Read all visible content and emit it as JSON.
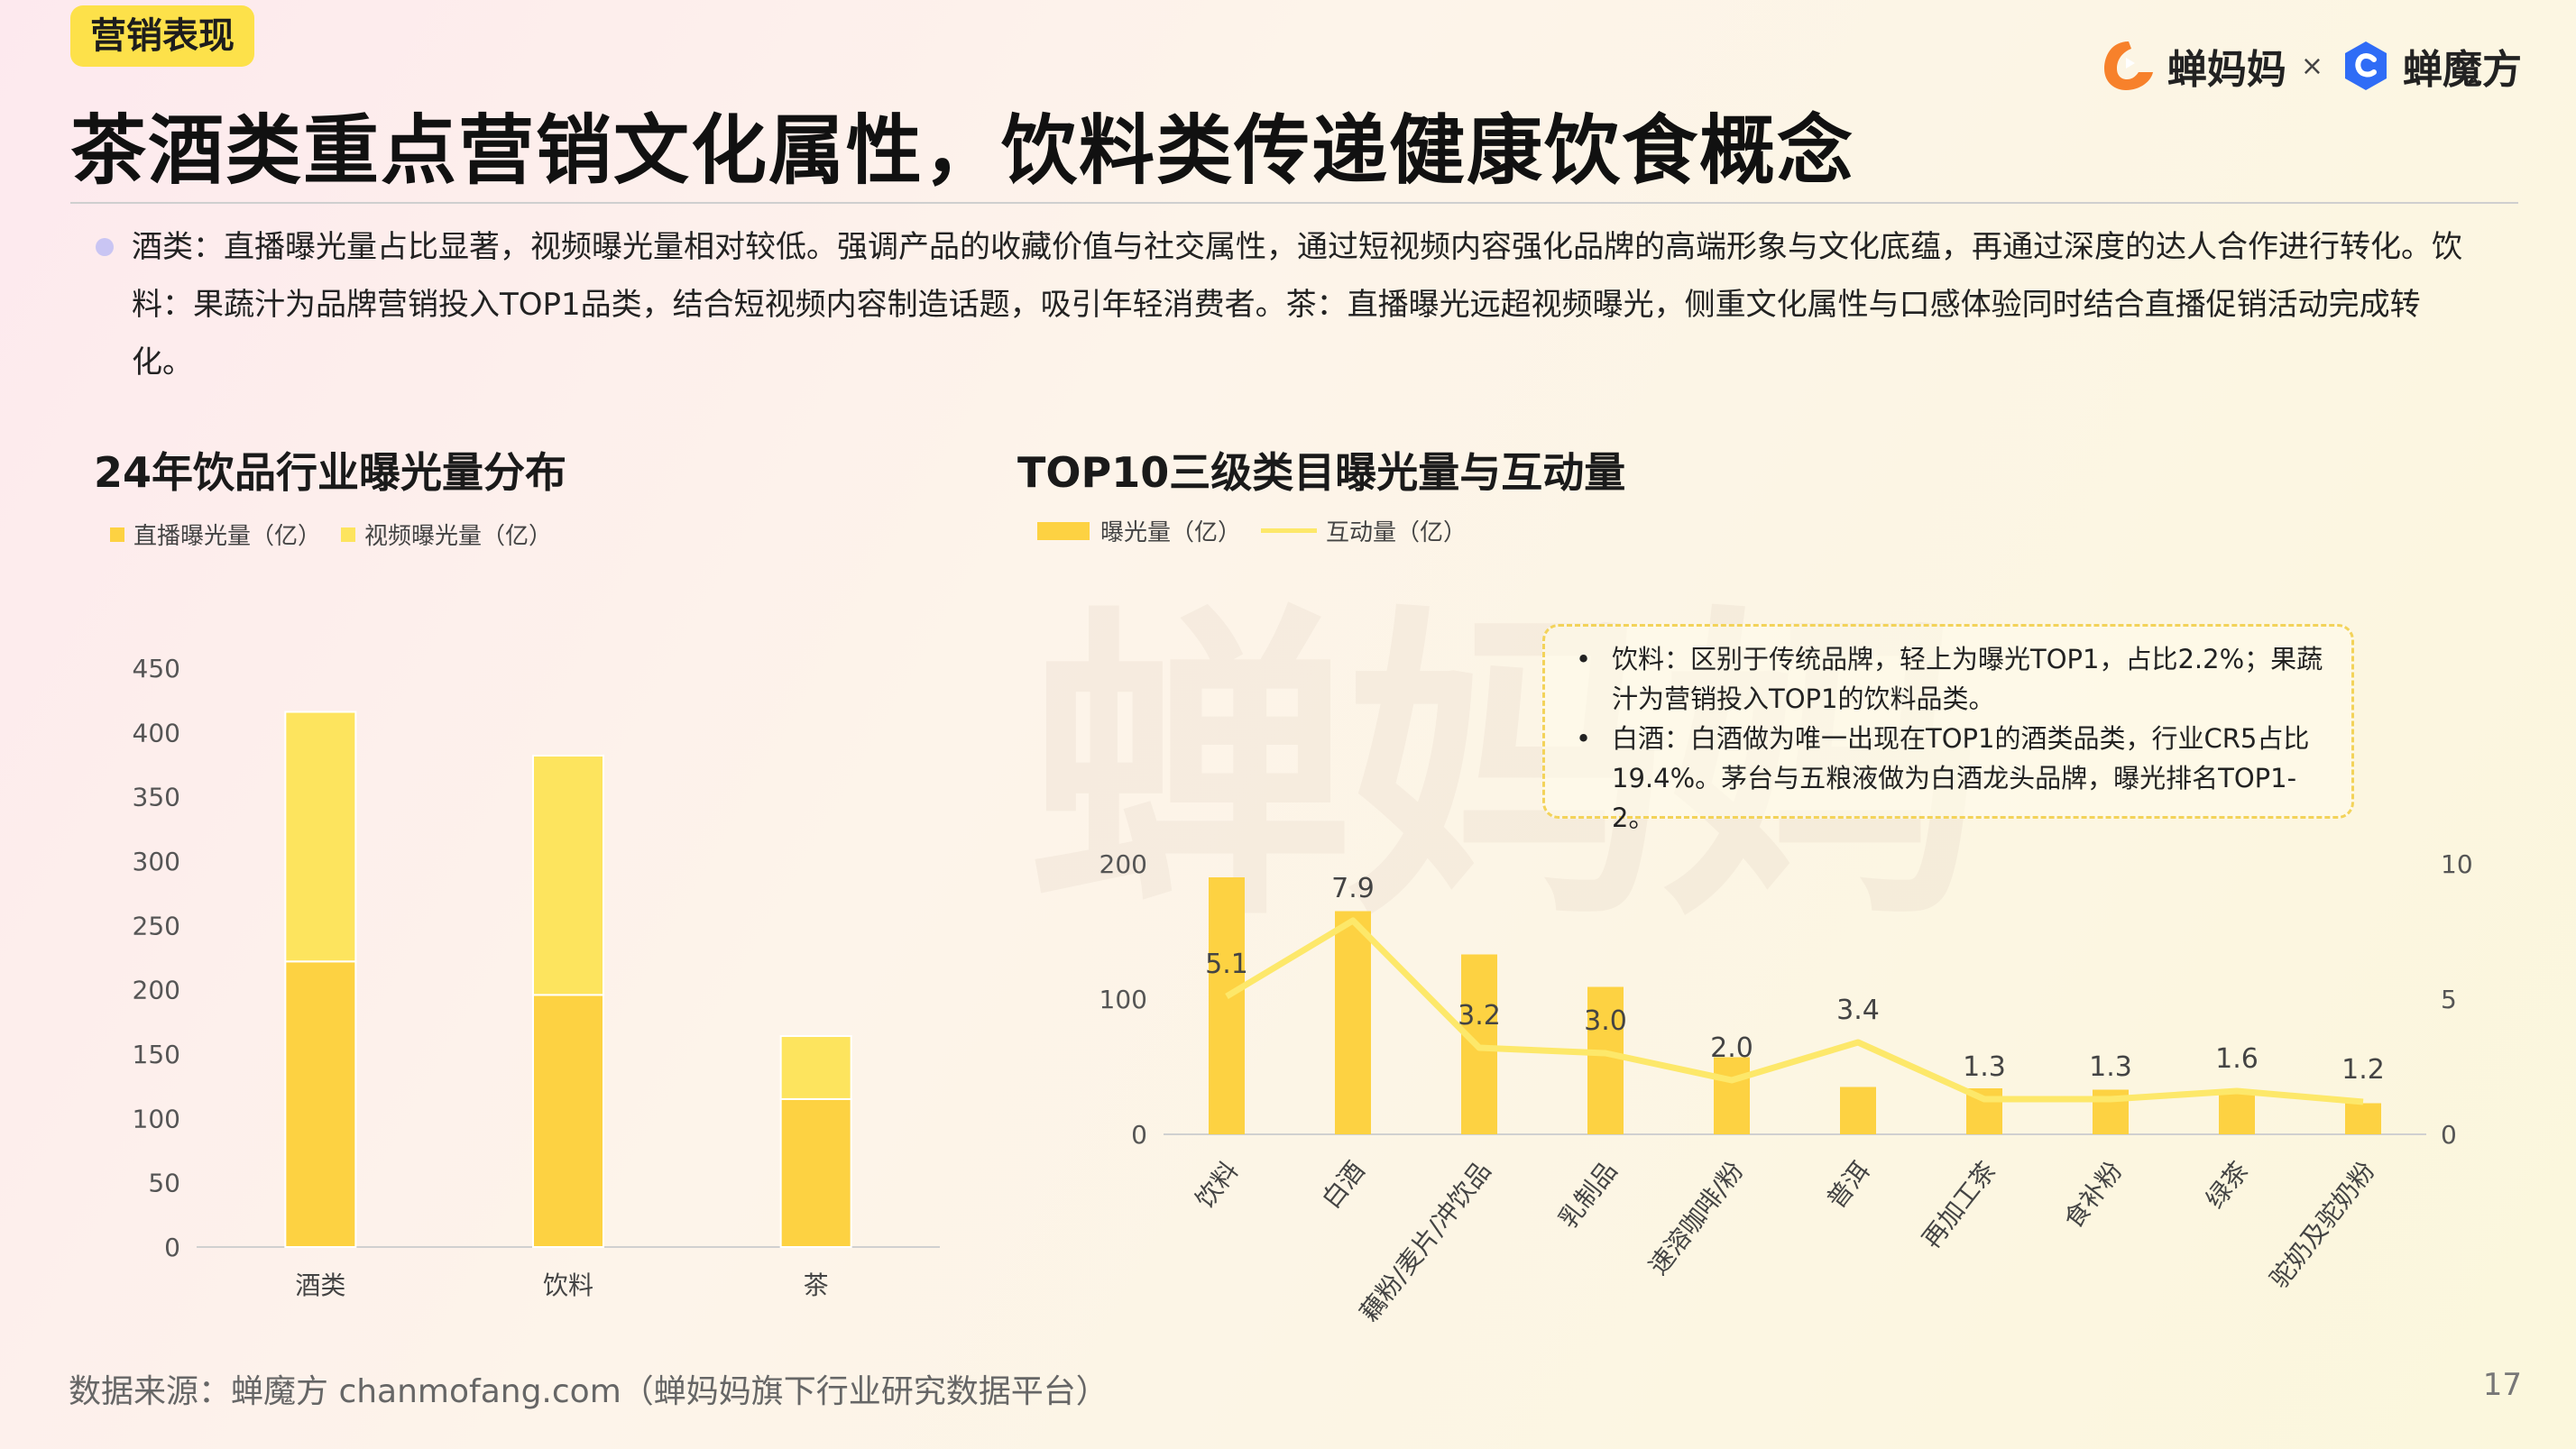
{
  "header": {
    "tag": "营销表现",
    "title": "茶酒类重点营销文化属性，饮料类传递健康饮食概念",
    "logo_left": "蝉妈妈",
    "logo_x": "×",
    "logo_right": "蝉魔方"
  },
  "summary": "酒类：直播曝光量占比显著，视频曝光量相对较低。强调产品的收藏价值与社交属性，通过短视频内容强化品牌的高端形象与文化底蕴，再通过深度的达人合作进行转化。饮料：果蔬汁为品牌营销投入TOP1品类，结合短视频内容制造话题，吸引年轻消费者。茶：直播曝光远超视频曝光，侧重文化属性与口感体验同时结合直播促销活动完成转化。",
  "watermark": "蝉妈妈",
  "note": {
    "items": [
      "饮料：区别于传统品牌，轻上为曝光TOP1，占比2.2%；果蔬汁为营销投入TOP1的饮料品类。",
      "白酒：白酒做为唯一出现在TOP1的酒类品类，行业CR5占比19.4%。茅台与五粮液做为白酒龙头品牌，曝光排名TOP1-2。"
    ]
  },
  "footer": {
    "source": "数据来源：蝉魔方 chanmofang.com（蝉妈妈旗下行业研究数据平台）",
    "page": "17"
  },
  "colors": {
    "bar_dark": "#fdd242",
    "bar_light": "#fde45e",
    "line": "#fde86a",
    "tag_bg": "#fde14a"
  },
  "chart_data": [
    {
      "type": "bar",
      "stacked": true,
      "title": "24年饮品行业曝光量分布",
      "categories": [
        "酒类",
        "饮料",
        "茶"
      ],
      "series": [
        {
          "name": "直播曝光量（亿）",
          "values": [
            222,
            196,
            115
          ]
        },
        {
          "name": "视频曝光量（亿）",
          "values": [
            194,
            186,
            49
          ]
        }
      ],
      "ylim": [
        0,
        450
      ],
      "yticks": [
        0,
        50,
        100,
        150,
        200,
        250,
        300,
        350,
        400,
        450
      ],
      "legend": "top-left",
      "grid": false
    },
    {
      "type": "bar",
      "title": "TOP10三级类目曝光量与互动量",
      "categories": [
        "饮料",
        "白酒",
        "藕粉/麦片/冲饮品",
        "乳制品",
        "速溶咖啡/粉",
        "普洱",
        "再加工茶",
        "食补粉",
        "绿茶",
        "驼奶及驼奶粉"
      ],
      "series": [
        {
          "name": "曝光量（亿）",
          "type": "bar",
          "axis": "left",
          "values": [
            190,
            165,
            133,
            109,
            57,
            35,
            34,
            33,
            33,
            23
          ]
        },
        {
          "name": "互动量（亿）",
          "type": "line",
          "axis": "right",
          "values": [
            5.1,
            7.9,
            3.2,
            3.0,
            2.0,
            3.4,
            1.3,
            1.3,
            1.6,
            1.2
          ],
          "labels": [
            "5.1",
            "7.9",
            "3.2",
            "3.0",
            "2.0",
            "3.4",
            "1.3",
            "1.3",
            "1.6",
            "1.2"
          ]
        }
      ],
      "ylim_left": [
        0,
        200
      ],
      "yticks_left": [
        0,
        100,
        200
      ],
      "ylim_right": [
        0,
        10
      ],
      "yticks_right": [
        0,
        5,
        10
      ],
      "legend": "top-left",
      "grid": false
    }
  ]
}
